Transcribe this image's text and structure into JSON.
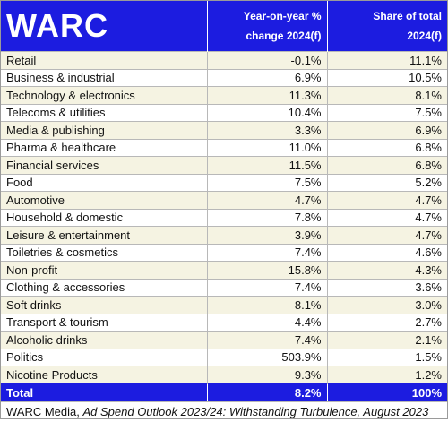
{
  "header": {
    "logo": "WARC",
    "col2_line1": "Year-on-year %",
    "col2_line2": "change 2024(f)",
    "col3_line1": "Share of total",
    "col3_line2": "2024(f)"
  },
  "rows": [
    {
      "category": "Retail",
      "yoy": "-0.1%",
      "share": "11.1%"
    },
    {
      "category": "Business & industrial",
      "yoy": "6.9%",
      "share": "10.5%"
    },
    {
      "category": "Technology & electronics",
      "yoy": "11.3%",
      "share": "8.1%"
    },
    {
      "category": "Telecoms & utilities",
      "yoy": "10.4%",
      "share": "7.5%"
    },
    {
      "category": "Media & publishing",
      "yoy": "3.3%",
      "share": "6.9%"
    },
    {
      "category": "Pharma & healthcare",
      "yoy": "11.0%",
      "share": "6.8%"
    },
    {
      "category": "Financial services",
      "yoy": "11.5%",
      "share": "6.8%"
    },
    {
      "category": "Food",
      "yoy": "7.5%",
      "share": "5.2%"
    },
    {
      "category": "Automotive",
      "yoy": "4.7%",
      "share": "4.7%"
    },
    {
      "category": "Household & domestic",
      "yoy": "7.8%",
      "share": "4.7%"
    },
    {
      "category": "Leisure & entertainment",
      "yoy": "3.9%",
      "share": "4.7%"
    },
    {
      "category": "Toiletries & cosmetics",
      "yoy": "7.4%",
      "share": "4.6%"
    },
    {
      "category": "Non-profit",
      "yoy": "15.8%",
      "share": "4.3%"
    },
    {
      "category": "Clothing & accessories",
      "yoy": "7.4%",
      "share": "3.6%"
    },
    {
      "category": "Soft drinks",
      "yoy": "8.1%",
      "share": "3.0%"
    },
    {
      "category": "Transport & tourism",
      "yoy": "-4.4%",
      "share": "2.7%"
    },
    {
      "category": "Alcoholic drinks",
      "yoy": "7.4%",
      "share": "2.1%"
    },
    {
      "category": "Politics",
      "yoy": "503.9%",
      "share": "1.5%"
    },
    {
      "category": "Nicotine Products",
      "yoy": "9.3%",
      "share": "1.2%"
    }
  ],
  "total": {
    "label": "Total",
    "yoy": "8.2%",
    "share": "100%"
  },
  "source": {
    "prefix": "WARC Media, ",
    "title": "Ad Spend Outlook 2023/24: Withstanding Turbulence, August 2023"
  },
  "colors": {
    "brand_blue": "#1c1ce0",
    "stripe": "#f5f3e2"
  }
}
